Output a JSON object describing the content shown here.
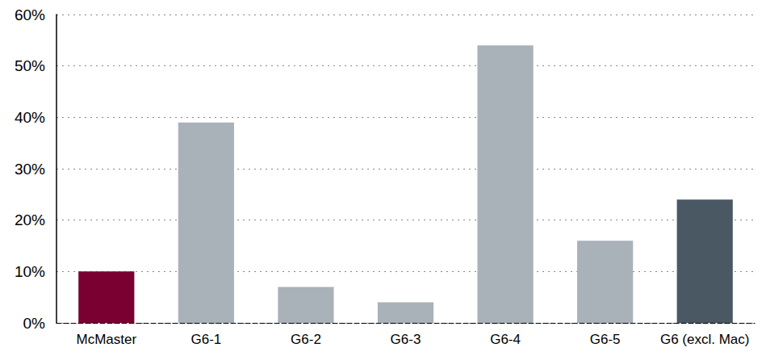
{
  "chart_data": {
    "type": "bar",
    "categories": [
      "McMaster",
      "G6-1",
      "G6-2",
      "G6-3",
      "G6-4",
      "G6-5",
      "G6 (excl. Mac)"
    ],
    "values": [
      10,
      39,
      7,
      4,
      54,
      16,
      24
    ],
    "colors": [
      "#7a0032",
      "#a9b1b9",
      "#a9b1b9",
      "#a9b1b9",
      "#a9b1b9",
      "#a9b1b9",
      "#4a5864"
    ],
    "ylim": [
      0,
      60
    ],
    "yticks": [
      {
        "value": 0,
        "label": "0%"
      },
      {
        "value": 10,
        "label": "10%"
      },
      {
        "value": 20,
        "label": "20%"
      },
      {
        "value": 30,
        "label": "30%"
      },
      {
        "value": 40,
        "label": "40%"
      },
      {
        "value": 50,
        "label": "50%"
      },
      {
        "value": 60,
        "label": "60%"
      }
    ],
    "grid": true
  }
}
